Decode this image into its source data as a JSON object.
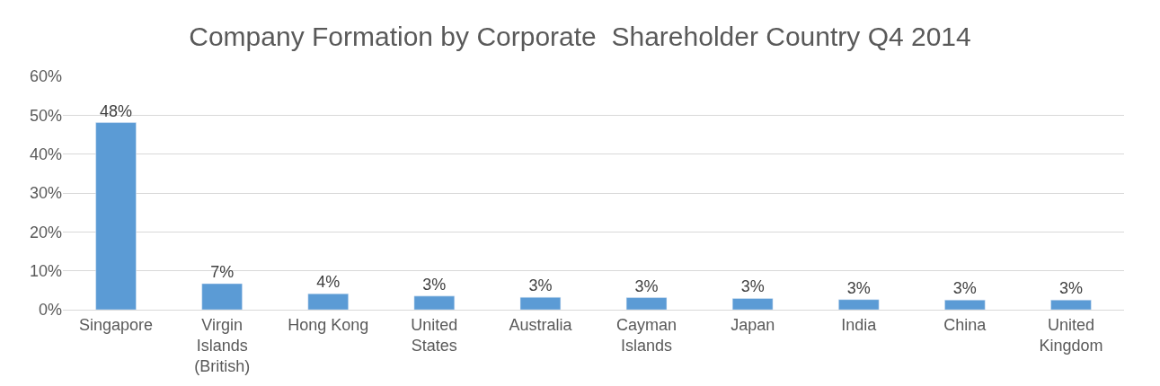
{
  "chart_data": {
    "type": "bar",
    "title": "Company Formation by Corporate  Shareholder Country Q4 2014",
    "categories": [
      "Singapore",
      "Virgin Islands (British)",
      "Hong Kong",
      "United States",
      "Australia",
      "Cayman Islands",
      "Japan",
      "India",
      "China",
      "United Kingdom"
    ],
    "values": [
      48.1,
      6.7,
      4.1,
      3.5,
      3.2,
      3.1,
      2.9,
      2.6,
      2.5,
      2.5
    ],
    "value_labels": [
      "48%",
      "7%",
      "4%",
      "3%",
      "3%",
      "3%",
      "3%",
      "3%",
      "3%",
      "3%"
    ],
    "color": "#5b9bd5",
    "ylim": [
      0,
      60
    ],
    "yticks": [
      {
        "value": 0,
        "label": "0%"
      },
      {
        "value": 10,
        "label": "10%"
      },
      {
        "value": 20,
        "label": "20%"
      },
      {
        "value": 30,
        "label": "30%"
      },
      {
        "value": 40,
        "label": "40%"
      },
      {
        "value": 50,
        "label": "50%"
      },
      {
        "value": 60,
        "label": "60%"
      }
    ],
    "grid": "y"
  }
}
